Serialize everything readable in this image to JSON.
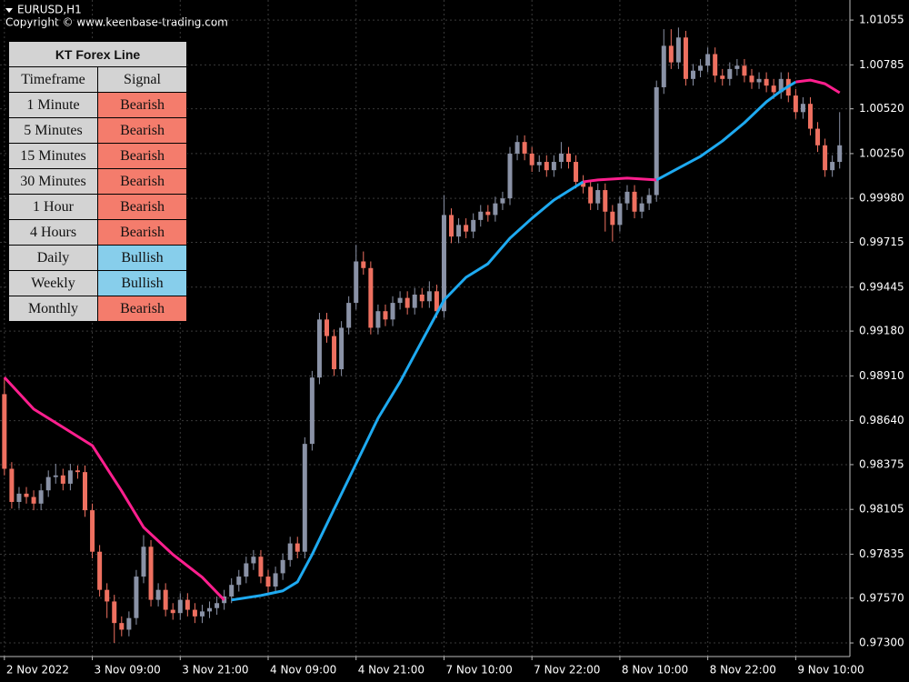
{
  "chart_data": {
    "type": "candlestick",
    "symbol_label": "EURUSD,H1",
    "copyright": "Copyright © www.keenbase-trading.com",
    "up_color": "#8a92a6",
    "down_color": "#ee7060",
    "grid": true,
    "xlim": [
      -0.6,
      115.4
    ],
    "ylim": [
      0.97218,
      1.01176
    ],
    "xticks": [
      {
        "value": 0,
        "label": "2 Nov 2022"
      },
      {
        "value": 12,
        "label": "3 Nov 09:00"
      },
      {
        "value": 24,
        "label": "3 Nov 21:00"
      },
      {
        "value": 36,
        "label": "4 Nov 09:00"
      },
      {
        "value": 48,
        "label": "4 Nov 21:00"
      },
      {
        "value": 60,
        "label": "7 Nov 10:00"
      },
      {
        "value": 72,
        "label": "7 Nov 22:00"
      },
      {
        "value": 84,
        "label": "8 Nov 10:00"
      },
      {
        "value": 96,
        "label": "8 Nov 22:00"
      },
      {
        "value": 108,
        "label": "9 Nov 10:00"
      }
    ],
    "yticks": [
      1.01055,
      1.00785,
      {
        "value": 1.0052,
        "label": "1.00520"
      },
      {
        "value": 1.0025,
        "label": "1.00250"
      },
      {
        "value": 0.9998,
        "label": "0.99980"
      },
      0.99715,
      0.99445,
      {
        "value": 0.9918,
        "label": "0.99180"
      },
      {
        "value": 0.9891,
        "label": "0.98910"
      },
      {
        "value": 0.9864,
        "label": "0.98640"
      },
      0.98375,
      0.98105,
      0.97835,
      {
        "value": 0.9757,
        "label": "0.97570"
      },
      {
        "value": 0.973,
        "label": "0.97300"
      }
    ],
    "open": [
      0.988,
      0.9835,
      0.9815,
      0.982,
      0.9818,
      0.9814,
      0.9822,
      0.983,
      0.9831,
      0.9826,
      0.9834,
      0.9833,
      0.981,
      0.9785,
      0.9762,
      0.9755,
      0.9742,
      0.9738,
      0.9745,
      0.977,
      0.9788,
      0.9756,
      0.9762,
      0.975,
      0.9748,
      0.9756,
      0.975,
      0.9746,
      0.9749,
      0.9751,
      0.9754,
      0.9758,
      0.9765,
      0.977,
      0.9778,
      0.9782,
      0.977,
      0.9764,
      0.9772,
      0.978,
      0.979,
      0.9785,
      0.985,
      0.989,
      0.9925,
      0.9915,
      0.9895,
      0.992,
      0.9935,
      0.996,
      0.9956,
      0.992,
      0.993,
      0.9925,
      0.9935,
      0.9938,
      0.9932,
      0.994,
      0.9936,
      0.9942,
      0.993,
      0.9988,
      0.9975,
      0.9982,
      0.9978,
      0.9985,
      0.999,
      0.9988,
      0.9995,
      0.9998,
      1.0025,
      1.0032,
      1.0025,
      1.0018,
      1.002,
      1.0015,
      1.002,
      1.0025,
      1.002,
      1.0008,
      1.0005,
      0.9995,
      1.0003,
      0.999,
      0.9982,
      0.9995,
      1.0002,
      0.999,
      0.9995,
      1.0,
      1.0065,
      1.009,
      1.008,
      1.0095,
      1.007,
      1.0075,
      1.0078,
      1.0085,
      1.0072,
      1.007,
      1.0076,
      1.0078,
      1.0072,
      1.0068,
      1.007,
      1.0066,
      1.0062,
      1.007,
      1.006,
      1.005,
      1.0055,
      1.004,
      1.003,
      1.0015,
      1.002
    ],
    "high": [
      0.989,
      0.9839,
      0.9824,
      0.9824,
      0.9822,
      0.9826,
      0.9834,
      0.9838,
      0.9835,
      0.9838,
      0.9837,
      0.9837,
      0.9814,
      0.9789,
      0.9766,
      0.9759,
      0.9746,
      0.9749,
      0.9774,
      0.9795,
      0.9792,
      0.9766,
      0.9766,
      0.9754,
      0.976,
      0.976,
      0.9754,
      0.9753,
      0.9755,
      0.9758,
      0.9762,
      0.9769,
      0.9774,
      0.9782,
      0.9786,
      0.9786,
      0.9774,
      0.9776,
      0.9784,
      0.9794,
      0.9794,
      0.9854,
      0.9894,
      0.9929,
      0.9929,
      0.9919,
      0.9924,
      0.9939,
      0.997,
      0.9966,
      0.996,
      0.9934,
      0.9934,
      0.9939,
      0.9942,
      0.9942,
      0.9944,
      0.9944,
      0.9948,
      0.9946,
      1.0,
      0.9992,
      0.9986,
      0.9986,
      0.9989,
      0.9994,
      0.9994,
      0.9999,
      1.0002,
      1.0029,
      1.0036,
      1.0036,
      1.0029,
      1.0024,
      1.0024,
      1.0024,
      1.0032,
      1.0029,
      1.0024,
      1.0012,
      1.0009,
      1.0007,
      1.0007,
      0.9994,
      0.9999,
      1.0006,
      1.0006,
      0.9999,
      1.0004,
      1.0069,
      1.01,
      1.01,
      1.0101,
      1.0099,
      1.0079,
      1.0082,
      1.0089,
      1.0089,
      1.0076,
      1.008,
      1.0082,
      1.0082,
      1.0076,
      1.0074,
      1.0074,
      1.007,
      1.0074,
      1.0074,
      1.0064,
      1.0059,
      1.0059,
      1.0044,
      1.0034,
      1.0024,
      1.005
    ],
    "low": [
      0.9831,
      0.9811,
      0.9811,
      0.9814,
      0.981,
      0.981,
      0.9818,
      0.9826,
      0.9822,
      0.9822,
      0.9829,
      0.9806,
      0.9781,
      0.9758,
      0.9745,
      0.973,
      0.9734,
      0.9734,
      0.9741,
      0.9766,
      0.9752,
      0.9752,
      0.9746,
      0.9744,
      0.9744,
      0.9746,
      0.9742,
      0.9742,
      0.9745,
      0.9747,
      0.975,
      0.9754,
      0.9761,
      0.9766,
      0.9774,
      0.9766,
      0.976,
      0.976,
      0.9768,
      0.9776,
      0.9781,
      0.9781,
      0.9846,
      0.9886,
      0.9911,
      0.9891,
      0.9891,
      0.9916,
      0.9931,
      0.9952,
      0.9916,
      0.9916,
      0.9921,
      0.9921,
      0.9931,
      0.9928,
      0.9928,
      0.9932,
      0.9932,
      0.9926,
      0.9926,
      0.9971,
      0.9971,
      0.9974,
      0.9974,
      0.9981,
      0.9984,
      0.9984,
      0.9991,
      0.9994,
      1.0021,
      1.0021,
      1.0014,
      1.0014,
      1.0011,
      1.0011,
      1.0016,
      1.0016,
      1.0004,
      1.0001,
      0.9991,
      0.9991,
      0.9978,
      0.9972,
      0.9978,
      0.9991,
      0.9986,
      0.9986,
      0.9991,
      0.9996,
      1.0061,
      1.0076,
      1.0076,
      1.0066,
      1.0066,
      1.0071,
      1.0074,
      1.0068,
      1.0066,
      1.0066,
      1.0072,
      1.0068,
      1.0064,
      1.0064,
      1.0062,
      1.0058,
      1.0058,
      1.0056,
      1.0046,
      1.0046,
      1.0036,
      1.0026,
      1.0011,
      1.0011,
      1.0016
    ],
    "close": [
      0.9835,
      0.9815,
      0.982,
      0.9818,
      0.9814,
      0.9822,
      0.983,
      0.9831,
      0.9826,
      0.9834,
      0.9833,
      0.981,
      0.9785,
      0.9762,
      0.9755,
      0.9742,
      0.9738,
      0.9745,
      0.977,
      0.9788,
      0.9756,
      0.9762,
      0.975,
      0.9748,
      0.9756,
      0.975,
      0.9746,
      0.9749,
      0.9751,
      0.9754,
      0.9758,
      0.9765,
      0.977,
      0.9778,
      0.9782,
      0.977,
      0.9764,
      0.9772,
      0.978,
      0.979,
      0.9785,
      0.985,
      0.989,
      0.9925,
      0.9915,
      0.9895,
      0.992,
      0.9935,
      0.996,
      0.9956,
      0.992,
      0.993,
      0.9925,
      0.9935,
      0.9938,
      0.9932,
      0.994,
      0.9936,
      0.9942,
      0.993,
      0.9988,
      0.9975,
      0.9982,
      0.9978,
      0.9985,
      0.999,
      0.9988,
      0.9995,
      0.9998,
      1.0025,
      1.0032,
      1.0025,
      1.0018,
      1.002,
      1.0015,
      1.002,
      1.0025,
      1.002,
      1.0008,
      1.0005,
      0.9995,
      1.0003,
      0.999,
      0.9982,
      0.9995,
      1.0002,
      0.999,
      0.9995,
      1.0,
      1.0065,
      1.009,
      1.008,
      1.0095,
      1.007,
      1.0075,
      1.0078,
      1.0085,
      1.0072,
      1.007,
      1.0076,
      1.0078,
      1.0072,
      1.0068,
      1.007,
      1.0066,
      1.0062,
      1.007,
      1.006,
      1.005,
      1.0055,
      1.004,
      1.003,
      1.0015,
      1.002,
      1.003
    ],
    "lines": [
      {
        "color": "#ff1f8e",
        "x": [
          0,
          4,
          8,
          12,
          16,
          19,
          23,
          27,
          30
        ],
        "values": [
          0.98901,
          0.9871,
          0.986,
          0.9849,
          0.98216,
          0.97997,
          0.97833,
          0.97696,
          0.97559
        ]
      },
      {
        "color": "#1eaaf1",
        "x": [
          31,
          35,
          38,
          40,
          42,
          45,
          48,
          51,
          54,
          57,
          60,
          63,
          66,
          69,
          72,
          75,
          79
        ],
        "values": [
          0.97559,
          0.97586,
          0.97614,
          0.97668,
          0.97833,
          0.98107,
          0.98381,
          0.98655,
          0.98874,
          0.99121,
          0.99367,
          0.99504,
          0.99586,
          0.9974,
          0.9986,
          0.9997,
          1.0008
        ]
      },
      {
        "color": "#ff1f8e",
        "x": [
          79,
          81,
          85,
          89
        ],
        "values": [
          1.0008,
          1.00091,
          1.00102,
          1.00091
        ]
      },
      {
        "color": "#1eaaf1",
        "x": [
          89,
          92,
          95,
          98,
          101,
          104,
          106,
          108
        ],
        "values": [
          1.00091,
          1.00162,
          1.00233,
          1.00326,
          1.00436,
          1.00562,
          1.00628,
          1.00682
        ]
      },
      {
        "color": "#ff1f8e",
        "x": [
          108,
          110,
          112,
          114
        ],
        "values": [
          1.00682,
          1.00693,
          1.00671,
          1.00617
        ]
      }
    ]
  },
  "table": {
    "title": "KT Forex Line",
    "headers": [
      "Timeframe",
      "Signal"
    ],
    "signal_colors": {
      "Bearish": "#f47c6c",
      "Bullish": "#87ceeb"
    },
    "rows": [
      [
        "1 Minute",
        "Bearish"
      ],
      [
        "5 Minutes",
        "Bearish"
      ],
      [
        "15 Minutes",
        "Bearish"
      ],
      [
        "30 Minutes",
        "Bearish"
      ],
      [
        "1 Hour",
        "Bearish"
      ],
      [
        "4 Hours",
        "Bearish"
      ],
      [
        "Daily",
        "Bullish"
      ],
      [
        "Weekly",
        "Bullish"
      ],
      [
        "Monthly",
        "Bearish"
      ]
    ]
  }
}
